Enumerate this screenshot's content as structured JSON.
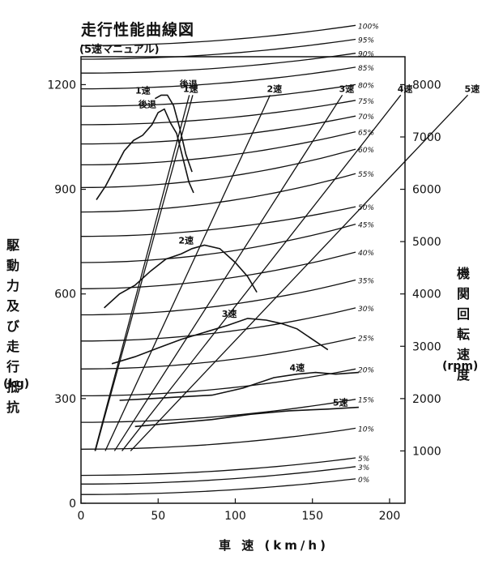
{
  "chart_data": {
    "type": "line",
    "title": "走行性能曲線図",
    "subtitle": "(5速マニュアル)",
    "ylabel": "駆動力及び走行抵抗",
    "yunit": "(kg)",
    "y2label": "機関回転速度",
    "y2unit": "(rpm)",
    "xlabel": "車 速 (km/h)",
    "xlim": [
      0,
      210
    ],
    "ylim": [
      0,
      1280
    ],
    "y2lim": [
      0,
      8533
    ],
    "xticks": [
      "0",
      "50",
      "100",
      "150",
      "200"
    ],
    "yticks": [
      "0",
      "300",
      "600",
      "900",
      "1200"
    ],
    "y2ticks": [
      "1000",
      "2000",
      "3000",
      "4000",
      "5000",
      "6000",
      "7000",
      "8000"
    ],
    "resistance_curves": [
      {
        "label": "0%",
        "start": 25,
        "end": 70
      },
      {
        "label": "3%",
        "start": 55,
        "end": 105
      },
      {
        "label": "5%",
        "start": 80,
        "end": 130
      },
      {
        "label": "10%",
        "start": 155,
        "end": 215
      },
      {
        "label": "15%",
        "start": 232,
        "end": 298
      },
      {
        "label": "20%",
        "start": 308,
        "end": 385
      },
      {
        "label": "25%",
        "start": 385,
        "end": 475
      },
      {
        "label": "30%",
        "start": 465,
        "end": 560
      },
      {
        "label": "35%",
        "start": 540,
        "end": 640
      },
      {
        "label": "40%",
        "start": 615,
        "end": 720
      },
      {
        "label": "45%",
        "start": 690,
        "end": 800
      },
      {
        "label": "50%",
        "start": 765,
        "end": 850
      },
      {
        "label": "55%",
        "start": 835,
        "end": 945
      },
      {
        "label": "60%",
        "start": 905,
        "end": 1015
      },
      {
        "label": "65%",
        "start": 970,
        "end": 1065
      },
      {
        "label": "70%",
        "start": 1030,
        "end": 1110
      },
      {
        "label": "75%",
        "start": 1085,
        "end": 1155
      },
      {
        "label": "80%",
        "start": 1138,
        "end": 1200
      },
      {
        "label": "85%",
        "start": 1188,
        "end": 1250
      },
      {
        "label": "90%",
        "start": 1233,
        "end": 1290
      },
      {
        "label": "95%",
        "start": 1273,
        "end": 1330
      },
      {
        "label": "100%",
        "start": 1312,
        "end": 1370
      }
    ],
    "engine_speed_lines": [
      {
        "label": "後退",
        "x_at_7000rpm": 63
      },
      {
        "label": "1速",
        "x_at_7000rpm": 65
      },
      {
        "label": "2速",
        "x_at_7000rpm": 110
      },
      {
        "label": "3速",
        "x_at_7000rpm": 152
      },
      {
        "label": "4速",
        "x_at_7000rpm": 186
      },
      {
        "label": "5速",
        "x_at_7000rpm": 225
      }
    ],
    "driving_force_curves": [
      {
        "label": "後退",
        "x": [
          10,
          16,
          22,
          28,
          34,
          40,
          46,
          50,
          54,
          58,
          62,
          66,
          70,
          73
        ],
        "y": [
          870,
          910,
          960,
          1010,
          1040,
          1055,
          1085,
          1120,
          1130,
          1090,
          1060,
          990,
          920,
          890
        ]
      },
      {
        "label": "1速",
        "x": [
          48,
          52,
          56,
          60,
          64,
          68,
          72
        ],
        "y": [
          1160,
          1170,
          1170,
          1140,
          1075,
          1000,
          950
        ]
      },
      {
        "label": "2速",
        "x": [
          15,
          25,
          35,
          45,
          55,
          65,
          72,
          80,
          90,
          100,
          108,
          114
        ],
        "y": [
          560,
          600,
          625,
          665,
          700,
          715,
          730,
          740,
          730,
          690,
          650,
          605
        ]
      },
      {
        "label": "3速",
        "x": [
          20,
          35,
          50,
          65,
          80,
          95,
          108,
          120,
          130,
          140,
          150,
          160
        ],
        "y": [
          400,
          420,
          445,
          470,
          490,
          510,
          530,
          525,
          515,
          500,
          470,
          440
        ]
      },
      {
        "label": "4速",
        "x": [
          25,
          45,
          65,
          85,
          105,
          125,
          140,
          152,
          165,
          180
        ],
        "y": [
          295,
          300,
          305,
          310,
          330,
          360,
          370,
          375,
          370,
          375
        ]
      },
      {
        "label": "5速",
        "x": [
          35,
          60,
          85,
          110,
          135,
          160,
          180
        ],
        "y": [
          220,
          230,
          240,
          255,
          265,
          270,
          275
        ]
      }
    ]
  }
}
